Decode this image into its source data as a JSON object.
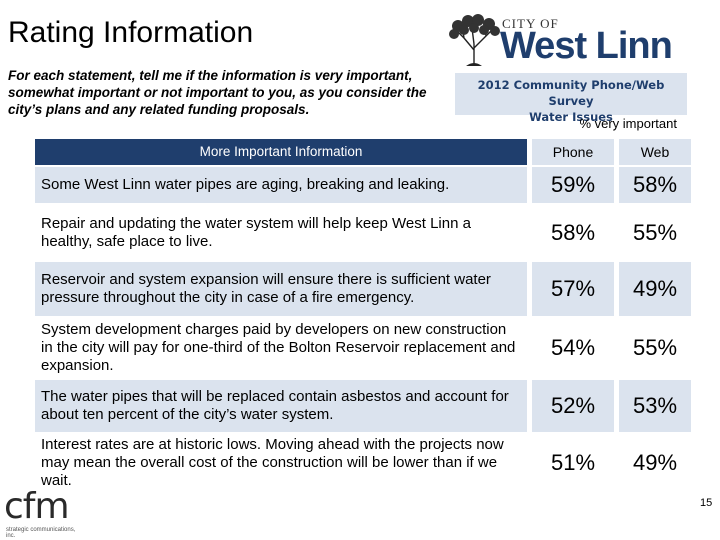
{
  "title": "Rating Information",
  "instructions": "For each statement, tell me if the information is very important, somewhat important or not important to you, as you consider the city’s plans and any related funding proposals.",
  "logo": {
    "city_of": "CITY OF",
    "name": "West Linn"
  },
  "survey_box": {
    "line1": "2012 Community Phone/Web Survey",
    "line2": "Water Issues"
  },
  "pct_note": "% very important",
  "table": {
    "header": "More Important Information",
    "col_phone": "Phone",
    "col_web": "Web",
    "rows": [
      {
        "statement": "Some West Linn water pipes are aging, breaking and leaking.",
        "phone": "59%",
        "web": "58%"
      },
      {
        "statement": "Repair and updating the water system will help keep West Linn a healthy, safe place to live.",
        "phone": "58%",
        "web": "55%"
      },
      {
        "statement": "Reservoir and system expansion will ensure there is sufficient water pressure throughout the city in case of a fire emergency.",
        "phone": "57%",
        "web": "49%"
      },
      {
        "statement": "System development charges paid by developers on new construction in the city will pay for one-third of the Bolton Reservoir replacement and expansion.",
        "phone": "54%",
        "web": "55%"
      },
      {
        "statement": "The water pipes that will be replaced contain asbestos and account for about ten percent of the city’s water system.",
        "phone": "52%",
        "web": "53%"
      },
      {
        "statement": "Interest rates are at historic lows. Moving ahead with the projects now may mean the overall cost of the construction will be lower than if we wait.",
        "phone": "51%",
        "web": "49%"
      }
    ]
  },
  "footer": {
    "brand": "cfm",
    "brand_sub": "strategic communications, inc.",
    "page_number": "15"
  },
  "colors": {
    "navy": "#1f3e6d",
    "light_band": "#dbe3ee"
  }
}
